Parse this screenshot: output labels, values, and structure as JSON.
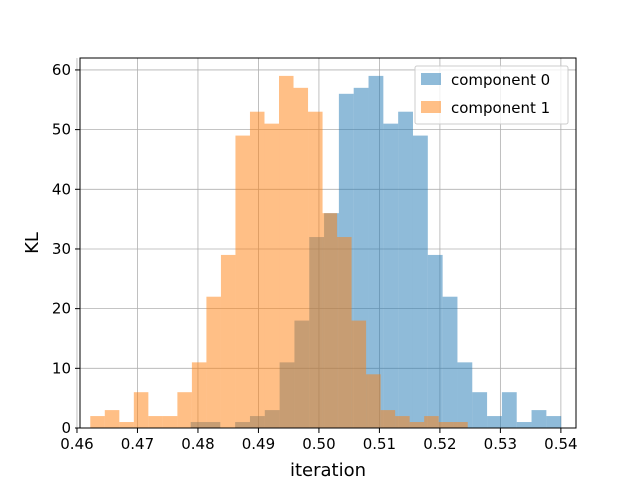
{
  "chart_data": {
    "type": "bar",
    "subtype": "histogram",
    "title": "",
    "xlabel": "iteration",
    "ylabel": "KL",
    "xlim": [
      0.4605,
      0.5425
    ],
    "ylim": [
      0,
      62
    ],
    "grid": true,
    "legend_position": "top-right",
    "xticks": [
      "0.46",
      "0.47",
      "0.48",
      "0.49",
      "0.50",
      "0.51",
      "0.52",
      "0.53",
      "0.54"
    ],
    "xtick_values": [
      0.46,
      0.47,
      0.48,
      0.49,
      0.5,
      0.51,
      0.52,
      0.53,
      0.54
    ],
    "yticks": [
      "0",
      "10",
      "20",
      "30",
      "40",
      "50",
      "60"
    ],
    "ytick_values": [
      0,
      10,
      20,
      30,
      40,
      50,
      60
    ],
    "series": [
      {
        "name": "component 0",
        "color": "#1f77b4",
        "alpha": 0.5,
        "bin_start": 0.4788,
        "bin_width": 0.00245,
        "values": [
          1,
          1,
          0,
          1,
          2,
          3,
          11,
          18,
          32,
          36,
          56,
          57,
          59,
          51,
          53,
          49,
          29,
          22,
          11,
          6,
          2,
          6,
          1,
          3,
          2
        ]
      },
      {
        "name": "component 1",
        "color": "#ff7f0e",
        "alpha": 0.5,
        "bin_start": 0.4622,
        "bin_width": 0.0024,
        "values": [
          2,
          3,
          1,
          6,
          2,
          2,
          6,
          11,
          22,
          29,
          49,
          53,
          51,
          59,
          57,
          53,
          36,
          32,
          18,
          9,
          3,
          2,
          1,
          2,
          1,
          1
        ]
      }
    ]
  }
}
